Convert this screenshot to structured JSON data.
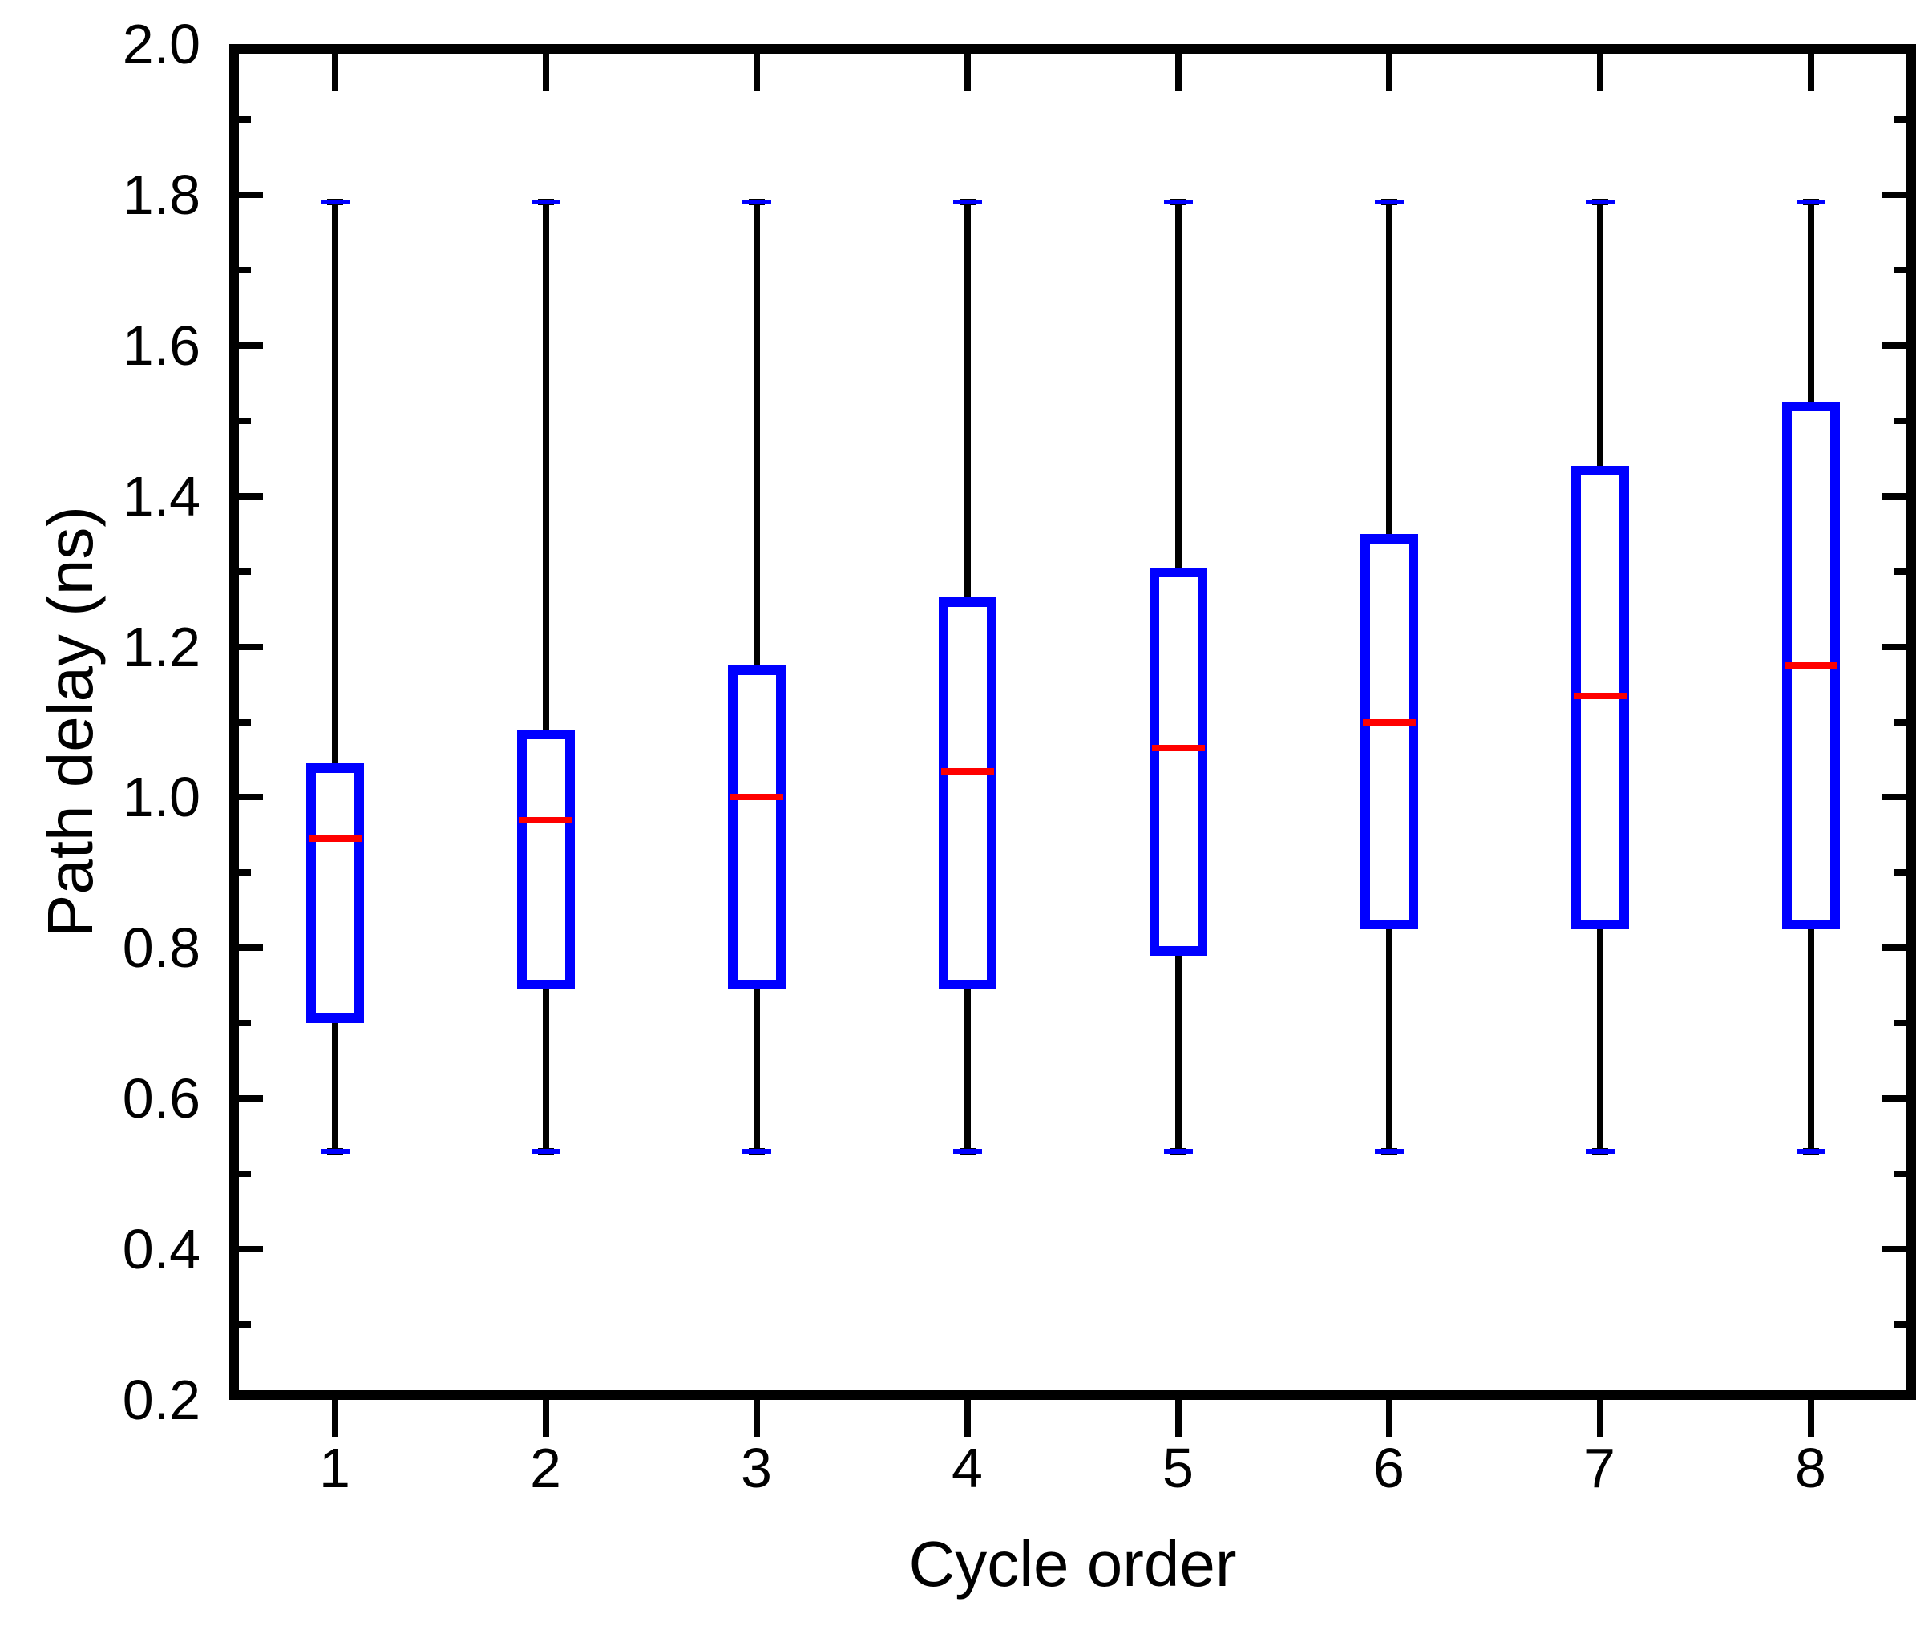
{
  "figure": {
    "background": "#ffffff"
  },
  "chart_data": {
    "type": "box",
    "title": "",
    "xlabel": "Cycle order",
    "ylabel": "Path delay (ns)",
    "ylim": [
      0.2,
      2.0
    ],
    "grid": false,
    "legend": {
      "visible": false
    },
    "categories": [
      "1",
      "2",
      "3",
      "4",
      "5",
      "6",
      "7",
      "8"
    ],
    "y_major_ticks": [
      {
        "value": 2.0,
        "label": "2.0"
      },
      {
        "value": 1.8,
        "label": "1.8"
      },
      {
        "value": 1.6,
        "label": "1.6"
      },
      {
        "value": 1.4,
        "label": "1.4"
      },
      {
        "value": 1.2,
        "label": "1.2"
      },
      {
        "value": 1.0,
        "label": "1.0"
      },
      {
        "value": 0.8,
        "label": "0.8"
      },
      {
        "value": 0.6,
        "label": "0.6"
      },
      {
        "value": 0.4,
        "label": "0.4"
      },
      {
        "value": 0.2,
        "label": "0.2"
      }
    ],
    "y_minor_ticks": [
      1.9,
      1.7,
      1.5,
      1.3,
      1.1,
      0.9,
      0.7,
      0.5,
      0.3
    ],
    "boxes": [
      {
        "category": "1",
        "whisker_low": 0.53,
        "q1": 0.7,
        "median": 0.945,
        "q3": 1.045,
        "whisker_high": 1.79
      },
      {
        "category": "2",
        "whisker_low": 0.53,
        "q1": 0.745,
        "median": 0.97,
        "q3": 1.09,
        "whisker_high": 1.79
      },
      {
        "category": "3",
        "whisker_low": 0.53,
        "q1": 0.745,
        "median": 1.0,
        "q3": 1.175,
        "whisker_high": 1.79
      },
      {
        "category": "4",
        "whisker_low": 0.53,
        "q1": 0.745,
        "median": 1.035,
        "q3": 1.265,
        "whisker_high": 1.79
      },
      {
        "category": "5",
        "whisker_low": 0.53,
        "q1": 0.79,
        "median": 1.065,
        "q3": 1.305,
        "whisker_high": 1.79
      },
      {
        "category": "6",
        "whisker_low": 0.53,
        "q1": 0.825,
        "median": 1.1,
        "q3": 1.35,
        "whisker_high": 1.79
      },
      {
        "category": "7",
        "whisker_low": 0.53,
        "q1": 0.825,
        "median": 1.135,
        "q3": 1.44,
        "whisker_high": 1.79
      },
      {
        "category": "8",
        "whisker_low": 0.53,
        "q1": 0.825,
        "median": 1.175,
        "q3": 1.525,
        "whisker_high": 1.79
      }
    ],
    "colors": {
      "box_border": "#0000ff",
      "median": "#ff0000",
      "whisker": "#000000",
      "whisker_cap": "#0000ff",
      "axis": "#000000",
      "background": "#ffffff"
    }
  }
}
